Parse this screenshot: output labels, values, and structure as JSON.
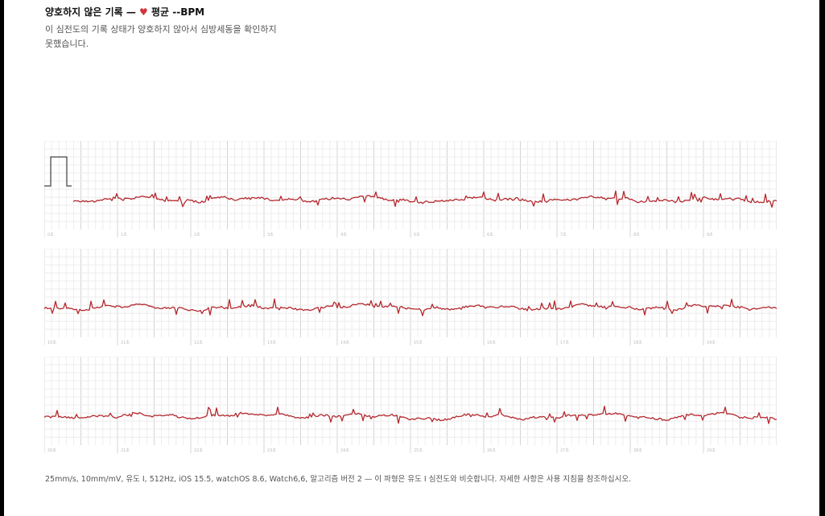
{
  "header": {
    "title_prefix": "양호하지 않은 기록 —",
    "heart_glyph": "♥",
    "title_suffix": "평균 --BPM",
    "subtitle": "이 심전도의 기록 상태가 양호하지 않아서 심방세동을 확인하지 못했습니다."
  },
  "footer": {
    "text": "25mm/s, 10mm/mV, 유도 I, 512Hz, iOS 15.5, watchOS 8.6, Watch6,6, 알고리즘 버전 2 — 이 파형은 유도 I 심전도와 비슷합니다. 자세한 사항은 사용 지침을 참조하십시오."
  },
  "colors": {
    "trace": "#b4282e",
    "grid_minor": "#ececec",
    "grid_major": "#d4d4d4",
    "heart": "#d0343a"
  },
  "chart_data": {
    "type": "line",
    "title": "",
    "xlabel": "",
    "ylabel": "",
    "paper_speed_mm_per_s": 25,
    "gain_mm_per_mV": 10,
    "sample_rate_hz": 512,
    "strips": [
      {
        "start_s": 0,
        "end_s": 10,
        "tick_labels": [
          "0초",
          "1초",
          "2초",
          "3초",
          "4초",
          "5초",
          "6초",
          "7초",
          "8초",
          "9초"
        ],
        "calibration_pulse": true
      },
      {
        "start_s": 10,
        "end_s": 20,
        "tick_labels": [
          "10초",
          "11초",
          "12초",
          "13초",
          "14초",
          "15초",
          "16초",
          "17초",
          "18초",
          "19초"
        ],
        "calibration_pulse": false
      },
      {
        "start_s": 20,
        "end_s": 30,
        "tick_labels": [
          "20초",
          "21초",
          "22초",
          "23초",
          "24초",
          "25초",
          "26초",
          "27초",
          "28초",
          "29초"
        ],
        "calibration_pulse": false
      }
    ]
  }
}
